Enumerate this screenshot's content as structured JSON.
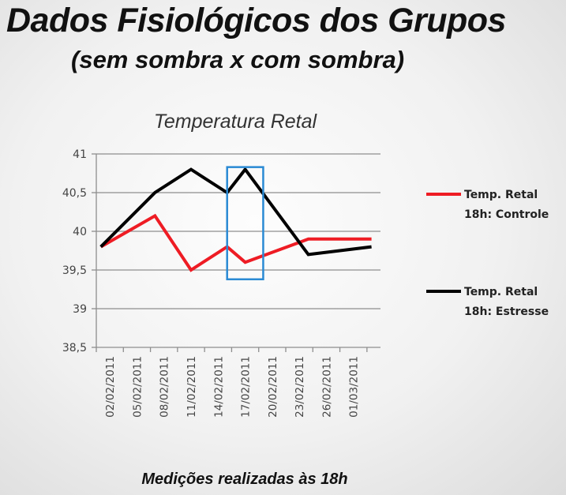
{
  "slide": {
    "title": "Dados Fisiológicos dos Grupos",
    "subtitle": "(sem sombra x com sombra)"
  },
  "chart_data": {
    "type": "line",
    "title": "Temperatura Retal",
    "xlabel": "Medições realizadas às 18h",
    "ylabel": "",
    "ylim": [
      38.5,
      41
    ],
    "yticks": [
      38.5,
      39,
      39.5,
      40,
      40.5,
      41
    ],
    "ytick_labels": [
      "38,5",
      "39",
      "39,5",
      "40",
      "40,5",
      "41"
    ],
    "grid": true,
    "legend_position": "right",
    "x": [
      "02/02/2011",
      "05/02/2011",
      "08/02/2011",
      "11/02/2011",
      "14/02/2011",
      "17/02/2011",
      "20/02/2011",
      "23/02/2011",
      "26/02/2011",
      "01/03/2011"
    ],
    "xticks": [
      "02/02/2011",
      "05/02/2011",
      "08/02/2011",
      "11/02/2011",
      "14/02/2011",
      "17/02/2011",
      "20/02/2011",
      "23/02/2011",
      "26/02/2011",
      "01/03/2011"
    ],
    "x_end": "04/03/2011",
    "series": [
      {
        "name": "Temp. Retal 18h: Controle",
        "name_lines": [
          "Temp. Retal",
          "18h: Controle"
        ],
        "color": "#ee1c24",
        "points": [
          {
            "x": "01/02/2011",
            "y": 39.8
          },
          {
            "x": "07/02/2011",
            "y": 40.2
          },
          {
            "x": "11/02/2011",
            "y": 39.5
          },
          {
            "x": "15/02/2011",
            "y": 39.8
          },
          {
            "x": "17/02/2011",
            "y": 39.6
          },
          {
            "x": "24/02/2011",
            "y": 39.9
          },
          {
            "x": "03/03/2011",
            "y": 39.9
          }
        ]
      },
      {
        "name": "Temp. Retal 18h: Estresse",
        "name_lines": [
          "Temp. Retal",
          "18h: Estresse"
        ],
        "color": "#000000",
        "points": [
          {
            "x": "01/02/2011",
            "y": 39.8
          },
          {
            "x": "07/02/2011",
            "y": 40.5
          },
          {
            "x": "11/02/2011",
            "y": 40.8
          },
          {
            "x": "15/02/2011",
            "y": 40.5
          },
          {
            "x": "17/02/2011",
            "y": 40.8
          },
          {
            "x": "24/02/2011",
            "y": 39.7
          },
          {
            "x": "03/03/2011",
            "y": 39.8
          }
        ]
      }
    ],
    "highlight": {
      "x_from": "15/02/2011",
      "x_to": "19/02/2011",
      "y_from": 39.38,
      "y_to": 40.83,
      "color": "#2a8ad4"
    }
  }
}
